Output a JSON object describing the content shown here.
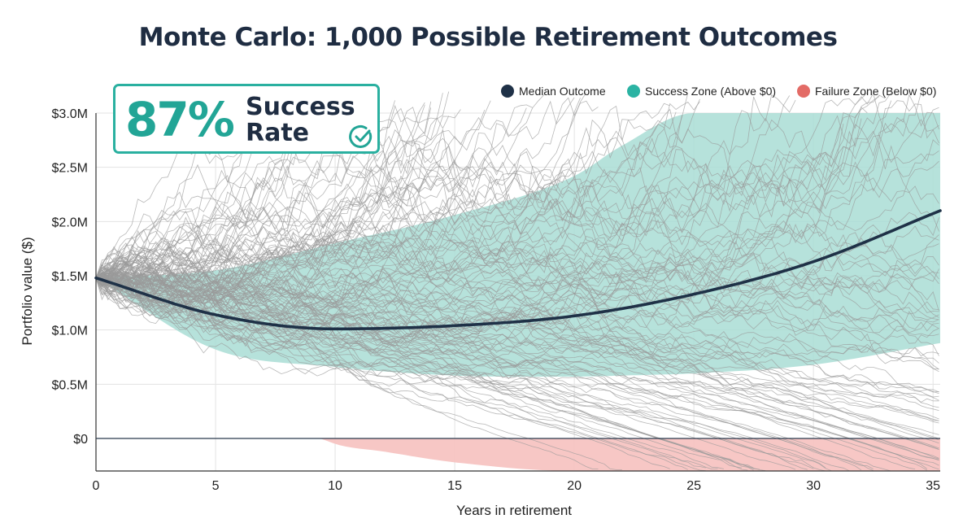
{
  "colors": {
    "median": "#1f3147",
    "success": "#a9ddd5",
    "success_marker": "#2bb3a3",
    "failure": "#f6c1bf",
    "failure_marker": "#e36b66",
    "paths": "#9a9a9a",
    "grid": "#e3e3e3",
    "accent": "#22a596"
  },
  "callout": {
    "percent": "87%",
    "line1": "Success",
    "line2": "Rate",
    "icon": "check-circle-icon"
  },
  "chart_data": {
    "type": "line",
    "title": "Monte Carlo: 1,000 Possible Retirement Outcomes",
    "xlabel": "Years in retirement",
    "ylabel": "Portfolio value ($)",
    "xlim": [
      0,
      35.3
    ],
    "ylim": [
      -0.3,
      3.0
    ],
    "x_ticks": [
      0,
      5,
      10,
      15,
      20,
      25,
      30,
      35
    ],
    "x_tick_labels": [
      "0",
      "5",
      "10",
      "15",
      "20",
      "25",
      "30",
      "35"
    ],
    "y_ticks": [
      0,
      0.5,
      1.0,
      1.5,
      2.0,
      2.5,
      3.0
    ],
    "y_tick_labels": [
      "$0",
      "$0.5M",
      "$1.0M",
      "$1.5M",
      "$2.0M",
      "$2.5M",
      "$3.0M"
    ],
    "grid": true,
    "legend_position": "top-right",
    "legend": [
      "Median Outcome",
      "Success Zone (Above $0)",
      "Failure Zone (Below $0)"
    ],
    "median": {
      "name": "Median Outcome",
      "x": [
        0,
        5,
        10,
        15,
        20,
        25,
        30,
        35.3
      ],
      "y": [
        1.48,
        1.14,
        1.01,
        1.04,
        1.13,
        1.33,
        1.63,
        2.1
      ]
    },
    "success_zone": {
      "name": "Success Zone (Above $0)",
      "x": [
        0,
        5,
        10,
        15,
        20,
        22,
        25,
        30,
        35.3
      ],
      "upper": [
        1.48,
        1.55,
        1.8,
        2.06,
        2.42,
        2.7,
        3.0,
        3.0,
        3.0
      ],
      "lower": [
        1.48,
        0.82,
        0.66,
        0.58,
        0.57,
        0.58,
        0.6,
        0.68,
        0.88
      ]
    },
    "failure_zone": {
      "name": "Failure Zone (Below $0)",
      "x": [
        8,
        9,
        10,
        12,
        15,
        20,
        25,
        30,
        35.3
      ],
      "lower": [
        0.2,
        0.05,
        -0.05,
        -0.12,
        -0.22,
        -0.3,
        -0.3,
        -0.3,
        -0.3
      ]
    },
    "simulated_paths": 1000
  }
}
